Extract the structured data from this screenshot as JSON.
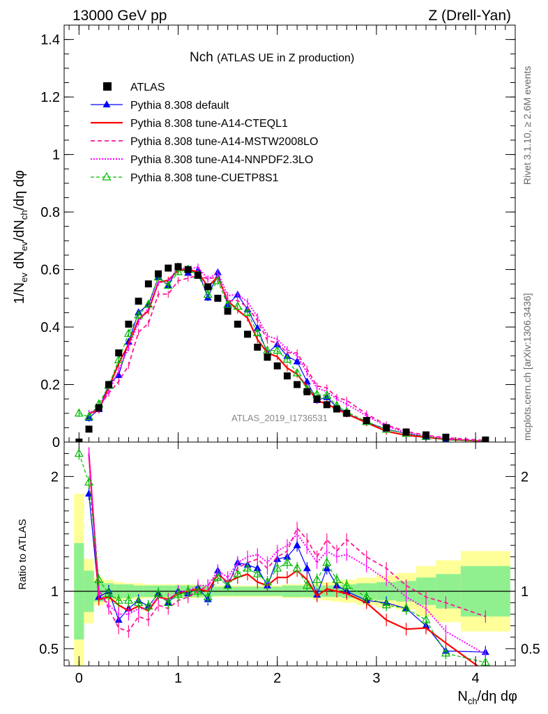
{
  "header": {
    "energy_label": "13000 GeV pp",
    "process_label": "Z (Drell-Yan)",
    "plot_title": "Nch",
    "plot_subtitle": "(ATLAS UE in Z production)",
    "analysis_watermark": "ATLAS_2019_I1736531",
    "side_label_top": "Rivet 3.1.10, ≥ 2.6M events",
    "side_label_bottom": "mcplots.cern.ch [arXiv:1306.3436]"
  },
  "axes": {
    "y_main_label": "1/N_ev dN_ev/dN_ch/dη dφ",
    "y_ratio_label": "Ratio to ATLAS",
    "x_label": "N_ch/dη dφ"
  },
  "colors": {
    "data": "#000000",
    "default": "#0000ff",
    "cteq": "#ff0000",
    "mstw": "#ff1493",
    "nnpdf": "#ff00ff",
    "cuetp": "#00bb00",
    "band_inner": "#90f090",
    "band_outer": "#ffff99"
  },
  "chart_data": {
    "type": "scatter",
    "x": [
      0.0,
      0.1,
      0.2,
      0.3,
      0.4,
      0.5,
      0.6,
      0.7,
      0.8,
      0.9,
      1.0,
      1.1,
      1.2,
      1.3,
      1.4,
      1.5,
      1.6,
      1.7,
      1.8,
      1.9,
      2.0,
      2.1,
      2.2,
      2.3,
      2.4,
      2.5,
      2.6,
      2.7,
      2.9,
      3.1,
      3.3,
      3.5,
      3.7,
      4.1
    ],
    "xlim": [
      -0.15,
      4.4
    ],
    "main_ylim": [
      0,
      1.45
    ],
    "ratio_ylim": [
      0.35,
      2.3
    ],
    "main_yticks": [
      0,
      0.2,
      0.4,
      0.6,
      0.8,
      1,
      1.2,
      1.4
    ],
    "ratio_yticks": [
      0.5,
      1,
      2
    ],
    "xticks": [
      0,
      1,
      2,
      3,
      4
    ],
    "legend_position": "top-left",
    "grid": false,
    "data": {
      "name": "ATLAS",
      "values": [
        0.0,
        0.045,
        0.12,
        0.2,
        0.31,
        0.41,
        0.49,
        0.55,
        0.585,
        0.605,
        0.61,
        0.6,
        0.58,
        0.54,
        0.5,
        0.455,
        0.41,
        0.375,
        0.33,
        0.295,
        0.265,
        0.23,
        0.2,
        0.175,
        0.15,
        0.13,
        0.115,
        0.1,
        0.075,
        0.05,
        0.035,
        0.025,
        0.017,
        0.007
      ]
    },
    "band": {
      "x_edges": [
        -0.05,
        0.05,
        0.15,
        0.25,
        0.35,
        0.45,
        0.55,
        0.65,
        0.75,
        0.85,
        0.95,
        1.05,
        1.15,
        1.25,
        1.35,
        1.45,
        1.55,
        1.65,
        1.75,
        1.85,
        1.95,
        2.05,
        2.15,
        2.25,
        2.35,
        2.45,
        2.55,
        2.65,
        2.8,
        3.0,
        3.2,
        3.4,
        3.6,
        3.85,
        4.35
      ],
      "inner": [
        0.42,
        0.18,
        0.09,
        0.07,
        0.06,
        0.06,
        0.05,
        0.05,
        0.05,
        0.05,
        0.05,
        0.05,
        0.05,
        0.05,
        0.04,
        0.04,
        0.04,
        0.04,
        0.04,
        0.04,
        0.04,
        0.05,
        0.05,
        0.05,
        0.05,
        0.05,
        0.05,
        0.06,
        0.07,
        0.08,
        0.09,
        0.12,
        0.15,
        0.22,
        0.3
      ],
      "outer": [
        0.85,
        0.28,
        0.12,
        0.1,
        0.08,
        0.07,
        0.07,
        0.06,
        0.06,
        0.06,
        0.06,
        0.06,
        0.06,
        0.05,
        0.05,
        0.05,
        0.05,
        0.05,
        0.05,
        0.05,
        0.05,
        0.06,
        0.06,
        0.06,
        0.07,
        0.08,
        0.09,
        0.1,
        0.12,
        0.14,
        0.16,
        0.22,
        0.27,
        0.35,
        0.45
      ]
    },
    "series": [
      {
        "name": "Pythia 8.308 default",
        "key": "default",
        "marker": "triangle-filled",
        "dash": "",
        "width": 1.2,
        "ratio": [
          null,
          1.85,
          0.95,
          1.0,
          0.75,
          0.85,
          0.92,
          0.87,
          0.98,
          0.9,
          1.0,
          0.98,
          1.03,
          0.93,
          1.18,
          1.05,
          1.25,
          1.23,
          1.2,
          1.05,
          1.28,
          1.3,
          1.4,
          1.2,
          0.97,
          1.2,
          1.05,
          1.0,
          0.92,
          0.9,
          0.85,
          0.7,
          0.48,
          0.47
        ]
      },
      {
        "name": "Pythia 8.308 tune-A14-CTEQL1",
        "key": "cteq",
        "marker": "none",
        "dash": "",
        "width": 2.2,
        "ratio": [
          null,
          2.2,
          0.93,
          0.95,
          0.88,
          0.83,
          0.87,
          0.83,
          0.95,
          0.93,
          0.98,
          1.0,
          1.02,
          1.0,
          1.15,
          1.08,
          1.12,
          1.15,
          1.08,
          1.05,
          1.12,
          1.12,
          1.18,
          1.1,
          0.96,
          1.02,
          1.0,
          0.98,
          0.9,
          0.75,
          0.67,
          0.68,
          0.55,
          0.3
        ]
      },
      {
        "name": "Pythia 8.308 tune-A14-MSTW2008LO",
        "key": "mstw",
        "marker": "none",
        "dash": "6,4",
        "width": 1.8,
        "ratio": [
          null,
          2.2,
          1.02,
          0.85,
          0.68,
          0.65,
          0.78,
          0.75,
          0.88,
          0.85,
          0.92,
          0.95,
          1.0,
          1.05,
          1.15,
          1.08,
          1.2,
          1.25,
          1.28,
          1.2,
          1.3,
          1.35,
          1.55,
          1.45,
          1.3,
          1.45,
          1.35,
          1.45,
          1.3,
          1.2,
          1.05,
          0.95,
          0.9,
          0.78
        ]
      },
      {
        "name": "Pythia 8.308 tune-A14-NNPDF2.3LO",
        "key": "nnpdf",
        "marker": "none",
        "dash": "2,2",
        "width": 2.0,
        "ratio": [
          null,
          2.2,
          1.0,
          0.88,
          0.8,
          0.8,
          0.85,
          0.85,
          0.95,
          0.92,
          1.0,
          1.0,
          1.05,
          1.05,
          1.18,
          1.12,
          1.25,
          1.3,
          1.32,
          1.25,
          1.35,
          1.4,
          1.5,
          1.38,
          1.25,
          1.35,
          1.3,
          1.32,
          1.22,
          1.1,
          0.95,
          0.85,
          0.65,
          0.45
        ]
      },
      {
        "name": "Pythia 8.308 tune-CUETP8S1",
        "key": "cuetp",
        "marker": "triangle-open",
        "dash": "5,3",
        "width": 1.2,
        "ratio": [
          2.2,
          1.95,
          1.1,
          0.98,
          0.92,
          0.92,
          0.9,
          0.87,
          0.98,
          0.9,
          0.97,
          1.0,
          1.0,
          0.95,
          1.12,
          1.05,
          1.15,
          1.2,
          1.15,
          1.08,
          1.2,
          1.25,
          1.2,
          1.05,
          1.1,
          1.25,
          1.1,
          1.05,
          0.95,
          0.88,
          0.85,
          0.75,
          0.46,
          0.38
        ]
      }
    ]
  }
}
